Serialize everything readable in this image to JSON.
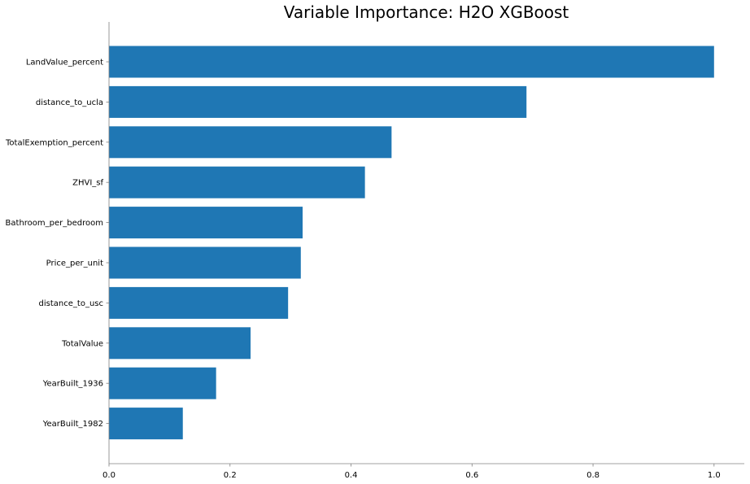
{
  "chart_data": {
    "type": "bar",
    "orientation": "horizontal",
    "title": "Variable Importance: H2O XGBoost",
    "xlabel": "",
    "ylabel": "",
    "categories": [
      "LandValue_percent",
      "distance_to_ucla",
      "TotalExemption_percent",
      "ZHVI_sf",
      "Bathroom_per_bedroom",
      "Price_per_unit",
      "distance_to_usc",
      "TotalValue",
      "YearBuilt_1936",
      "YearBuilt_1982"
    ],
    "values": [
      1.0,
      0.69,
      0.467,
      0.423,
      0.32,
      0.317,
      0.296,
      0.234,
      0.177,
      0.122
    ],
    "xlim": [
      0.0,
      1.05
    ],
    "xticks": [
      0.0,
      0.2,
      0.4,
      0.6,
      0.8,
      1.0
    ],
    "xtick_labels": [
      "0.0",
      "0.2",
      "0.4",
      "0.6",
      "0.8",
      "1.0"
    ],
    "grid": false,
    "legend": "none",
    "bar_color": "#1f77b4",
    "spine_color": "#808080"
  }
}
